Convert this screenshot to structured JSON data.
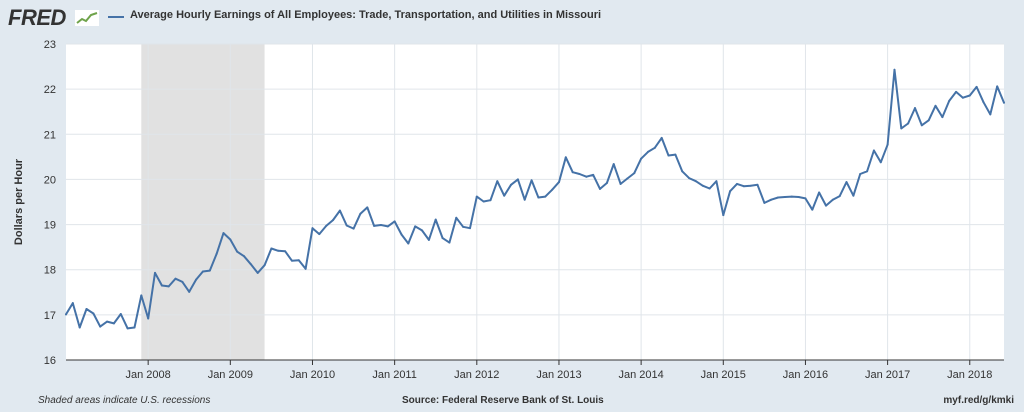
{
  "header": {
    "logo_text": "FRED",
    "logo_icon": "fred-mini-chart-icon"
  },
  "colors": {
    "series": "#4572a7",
    "recession": "#e1e1e1",
    "background": "#e1e9f0",
    "plot_background": "#ffffff",
    "grid": "#e0e5ea"
  },
  "footer": {
    "note": "Shaded areas indicate U.S. recessions",
    "source": "Source: Federal Reserve Bank of St. Louis",
    "link": "myf.red/g/kmki"
  },
  "chart_data": {
    "type": "line",
    "title": "",
    "xlabel": "",
    "ylabel": "Dollars per Hour",
    "ylim": [
      16,
      23
    ],
    "yticks": [
      16,
      17,
      18,
      19,
      20,
      21,
      22,
      23
    ],
    "grid": true,
    "legend_position": "top",
    "x_tick_labels": [
      "Jan 2008",
      "Jan 2009",
      "Jan 2010",
      "Jan 2011",
      "Jan 2012",
      "Jan 2013",
      "Jan 2014",
      "Jan 2015",
      "Jan 2016",
      "Jan 2017",
      "Jan 2018"
    ],
    "recessions": [
      {
        "start": "2007-12",
        "end": "2009-06"
      }
    ],
    "series": [
      {
        "name": "Average Hourly Earnings of All Employees: Trade, Transportation, and Utilities in Missouri",
        "start": "2007-01",
        "frequency": "monthly",
        "values": [
          17.01,
          17.26,
          16.72,
          17.13,
          17.03,
          16.74,
          16.85,
          16.81,
          17.02,
          16.7,
          16.72,
          17.43,
          16.92,
          17.93,
          17.65,
          17.63,
          17.8,
          17.73,
          17.51,
          17.78,
          17.96,
          17.98,
          18.35,
          18.81,
          18.67,
          18.4,
          18.3,
          18.12,
          17.93,
          18.1,
          18.47,
          18.42,
          18.41,
          18.2,
          18.21,
          18.02,
          18.92,
          18.79,
          18.97,
          19.1,
          19.31,
          18.98,
          18.91,
          19.24,
          19.38,
          18.97,
          18.99,
          18.96,
          19.07,
          18.78,
          18.58,
          18.96,
          18.87,
          18.66,
          19.11,
          18.7,
          18.6,
          19.15,
          18.95,
          18.92,
          19.62,
          19.51,
          19.54,
          19.96,
          19.64,
          19.88,
          20.0,
          19.55,
          19.98,
          19.6,
          19.62,
          19.77,
          19.94,
          20.49,
          20.16,
          20.12,
          20.06,
          20.1,
          19.79,
          19.92,
          20.34,
          19.9,
          20.02,
          20.14,
          20.46,
          20.61,
          20.7,
          20.92,
          20.53,
          20.55,
          20.18,
          20.03,
          19.96,
          19.86,
          19.8,
          19.96,
          19.21,
          19.74,
          19.9,
          19.85,
          19.86,
          19.88,
          19.48,
          19.55,
          19.6,
          19.61,
          19.62,
          19.61,
          19.58,
          19.33,
          19.71,
          19.42,
          19.55,
          19.63,
          19.94,
          19.64,
          20.12,
          20.18,
          20.64,
          20.38,
          20.77,
          22.43,
          21.13,
          21.24,
          21.58,
          21.2,
          21.31,
          21.63,
          21.38,
          21.74,
          21.94,
          21.81,
          21.86,
          22.05,
          21.71,
          21.44,
          22.06,
          21.7
        ]
      }
    ]
  }
}
